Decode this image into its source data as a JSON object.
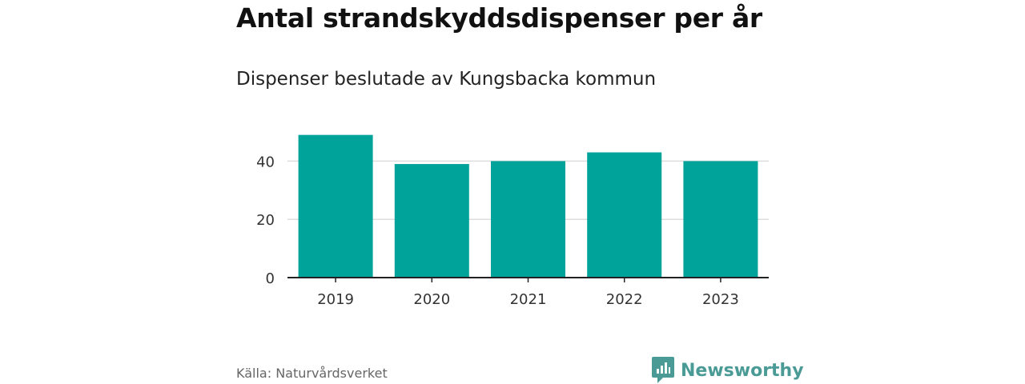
{
  "title": "Antal strandskyddsdispenser per år",
  "subtitle": "Dispenser beslutade av Kungsbacka kommun",
  "source": "Källa: Naturvårdsverket",
  "brand": {
    "name": "Newsworthy",
    "icon": "bar-chart-speech-bubble-icon"
  },
  "colors": {
    "bar": "#00a39a",
    "grid": "#dddddd",
    "axis": "#222222",
    "brand": "#4a9a95"
  },
  "chart_data": {
    "type": "bar",
    "title": "Antal strandskyddsdispenser per år",
    "subtitle": "Dispenser beslutade av Kungsbacka kommun",
    "categories": [
      "2019",
      "2020",
      "2021",
      "2022",
      "2023"
    ],
    "values": [
      49,
      39,
      40,
      43,
      40
    ],
    "xlabel": "",
    "ylabel": "",
    "ylim": [
      0,
      50
    ],
    "yticks": [
      0,
      20,
      40
    ],
    "grid": true
  }
}
